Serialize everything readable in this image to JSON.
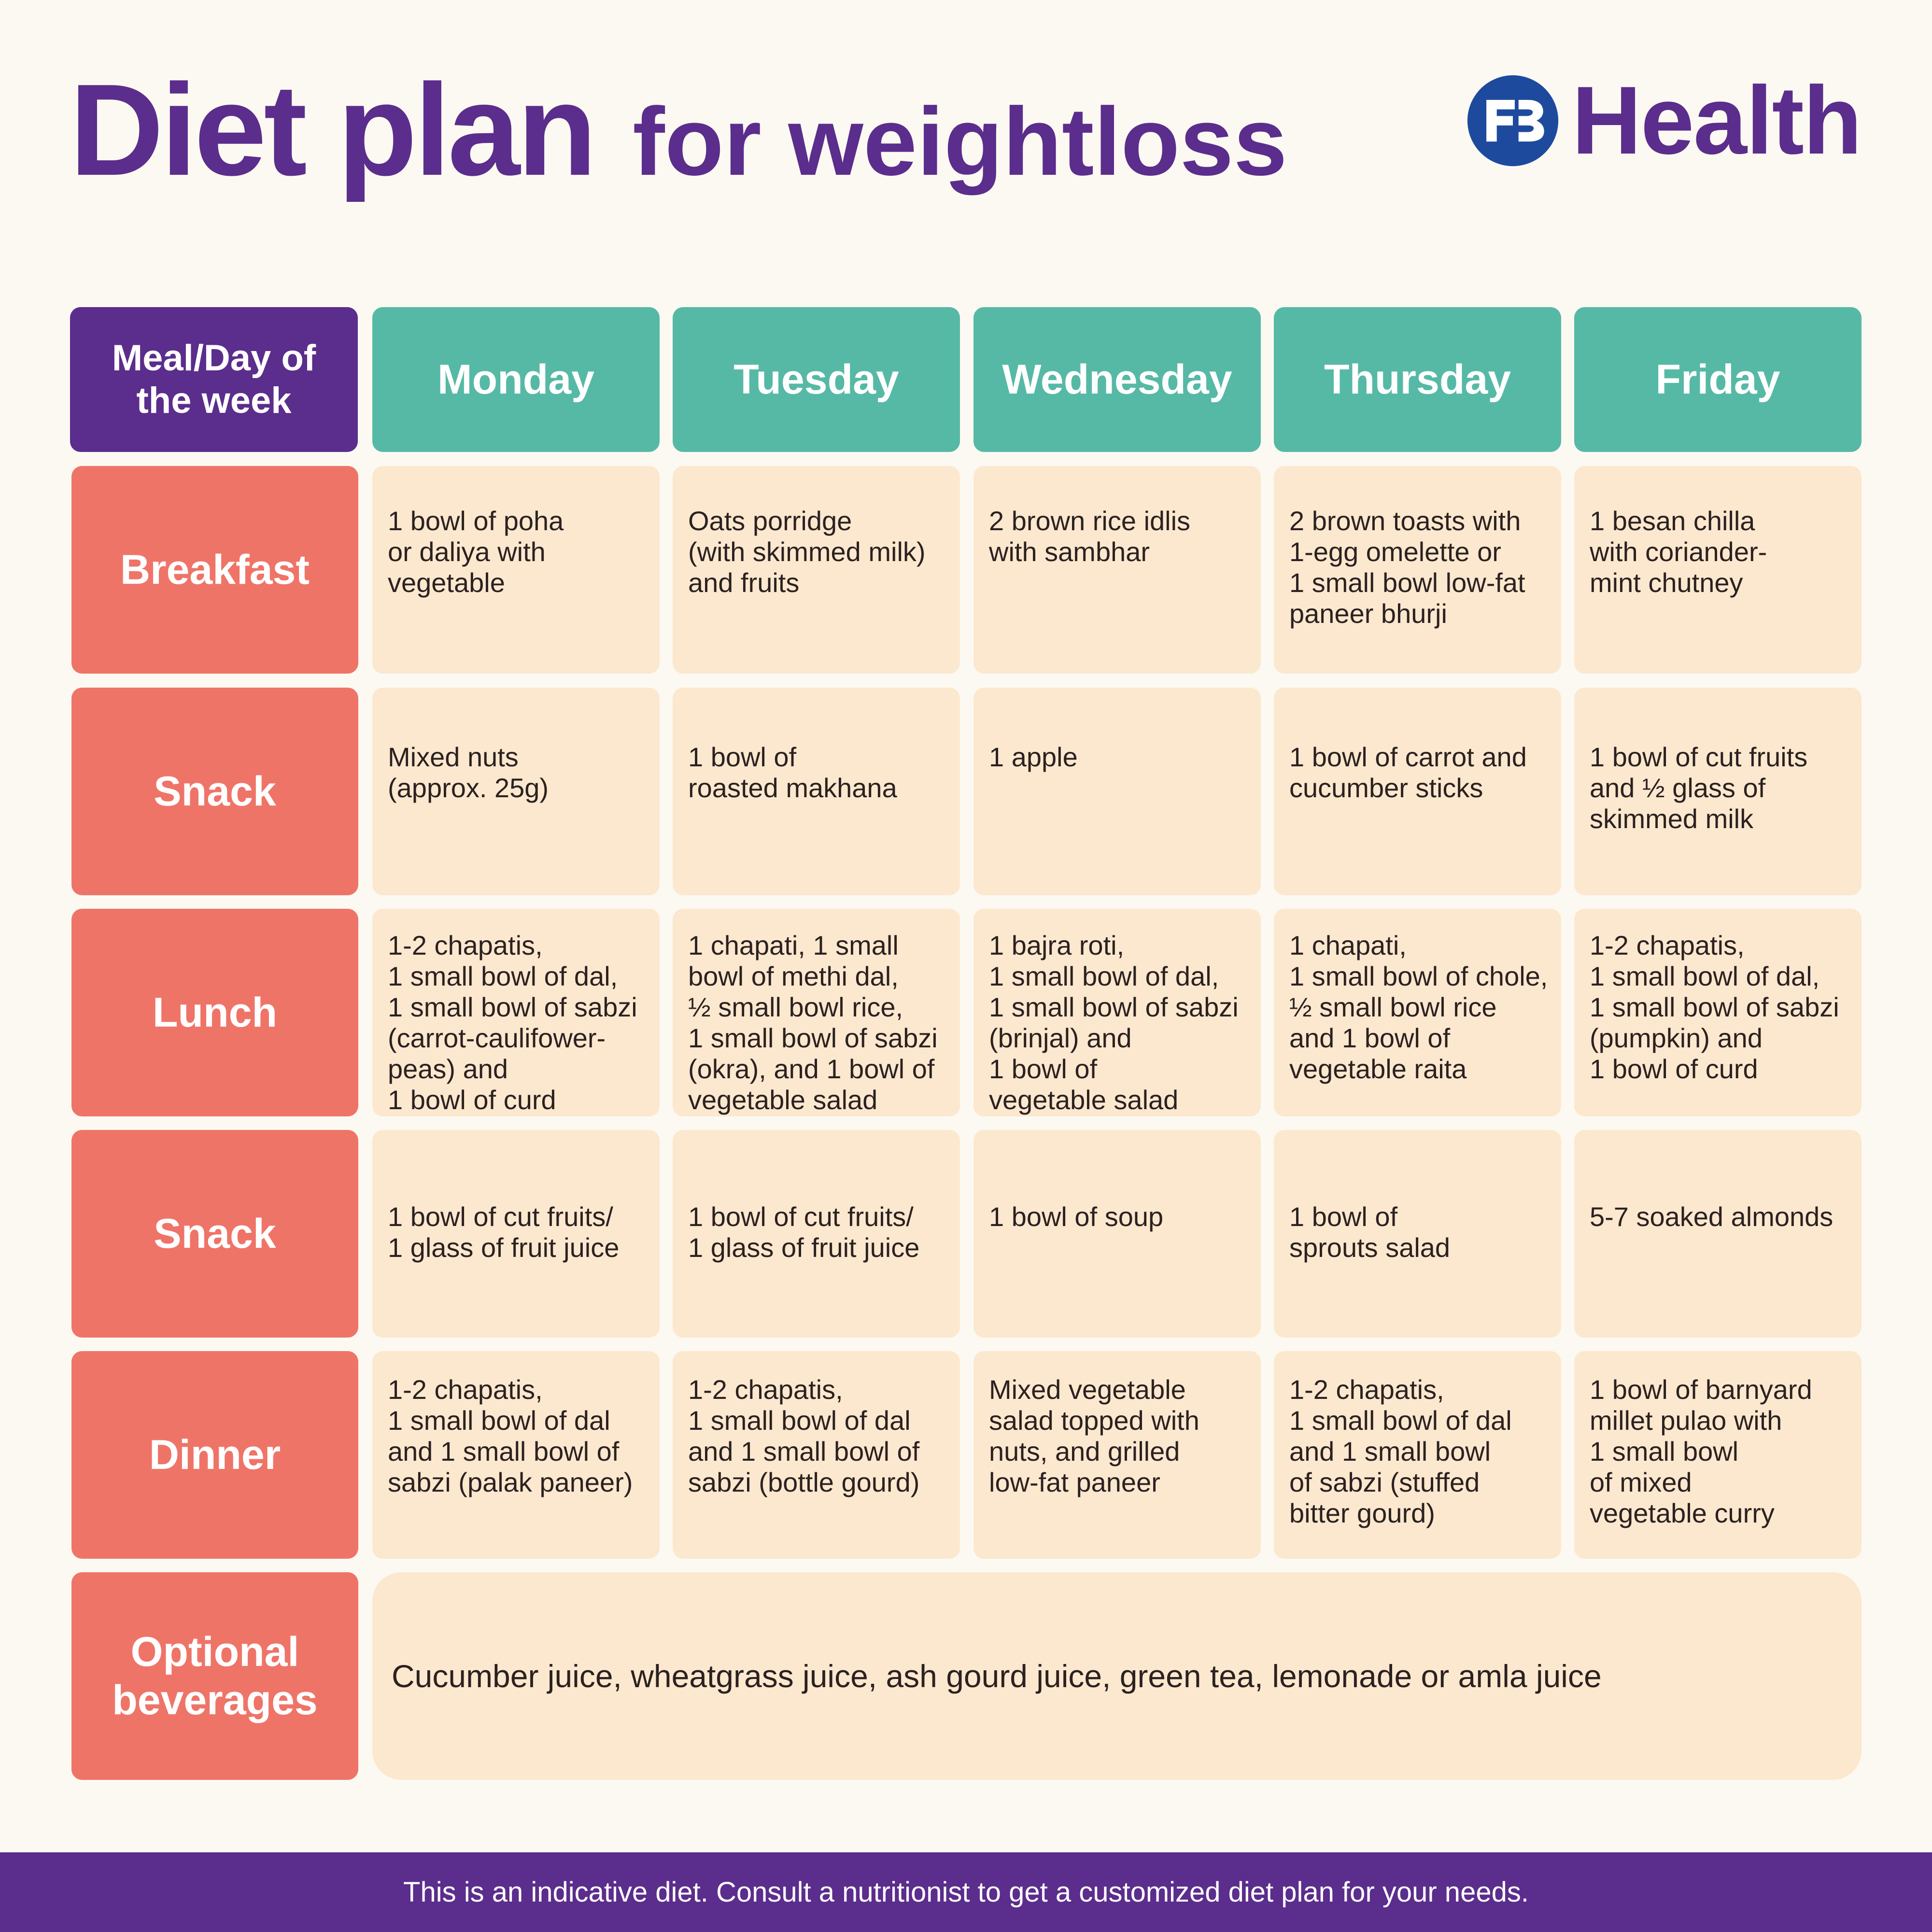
{
  "header": {
    "title_main": "Diet plan",
    "title_sub": "for weightloss",
    "brand_name": "Health",
    "brand_logo_icon": "bajaj-finserv-logo-icon",
    "brand_color": "#1e4a9e"
  },
  "table": {
    "corner_label": "Meal/Day of\nthe week",
    "days": [
      "Monday",
      "Tuesday",
      "Wednesday",
      "Thursday",
      "Friday"
    ],
    "rows": [
      {
        "meal": "Breakfast",
        "cells": [
          "1 bowl of poha\nor daliya with\nvegetable",
          "Oats porridge\n(with skimmed milk)\nand fruits",
          "2 brown rice idlis\nwith sambhar",
          "2 brown toasts with\n1-egg omelette or\n1 small bowl low-fat\npaneer bhurji",
          "1 besan chilla\nwith coriander-\nmint chutney"
        ]
      },
      {
        "meal": "Snack",
        "cells": [
          "Mixed nuts\n(approx. 25g)",
          "1 bowl of\nroasted makhana",
          "1 apple",
          "1 bowl of carrot and\ncucumber sticks",
          "1 bowl of cut fruits\nand ½ glass of\nskimmed milk"
        ]
      },
      {
        "meal": "Lunch",
        "cells": [
          "1-2 chapatis,\n1 small bowl of dal,\n1 small bowl of sabzi\n(carrot-caulifower-\npeas) and\n1 bowl of curd",
          "1 chapati, 1 small\nbowl of methi dal,\n½ small bowl rice,\n1 small bowl of sabzi\n(okra), and 1 bowl of\nvegetable salad",
          "1 bajra roti,\n1 small bowl of dal,\n1 small bowl of sabzi\n(brinjal) and\n1 bowl of\nvegetable salad",
          "1 chapati,\n1 small bowl of chole,\n½ small bowl rice\nand 1 bowl of\nvegetable raita",
          "1-2 chapatis,\n1 small bowl of dal,\n1 small bowl of sabzi\n(pumpkin) and\n1 bowl of curd"
        ]
      },
      {
        "meal": "Snack",
        "cells": [
          "1 bowl of cut fruits/\n1 glass of fruit juice",
          "1 bowl of cut fruits/\n1 glass of fruit juice",
          "1 bowl of soup",
          "1 bowl of\nsprouts salad",
          "5-7 soaked almonds"
        ]
      },
      {
        "meal": "Dinner",
        "cells": [
          "1-2 chapatis,\n1 small bowl of dal\nand 1 small bowl of\nsabzi (palak paneer)",
          "1-2 chapatis,\n1 small bowl of dal\nand 1 small bowl of\nsabzi (bottle gourd)",
          "Mixed vegetable\nsalad topped with\nnuts, and grilled\nlow-fat paneer",
          "1-2 chapatis,\n1 small bowl of dal\nand 1 small bowl\nof sabzi (stuffed\nbitter gourd)",
          "1 bowl of barnyard\nmillet pulao with\n1 small bowl\nof mixed\nvegetable curry"
        ]
      }
    ],
    "beverages": {
      "meal": "Optional\nbeverages",
      "text": "Cucumber juice, wheatgrass juice, ash gourd juice, green tea, lemonade or amla juice"
    }
  },
  "footer": {
    "text": "This is an indicative diet. Consult a nutritionist to get a customized diet plan for your needs."
  },
  "colors": {
    "purple": "#5b2d8c",
    "teal": "#56b9a5",
    "coral": "#ef7468",
    "cream": "#fce8cf",
    "background": "#fcf9f2"
  }
}
